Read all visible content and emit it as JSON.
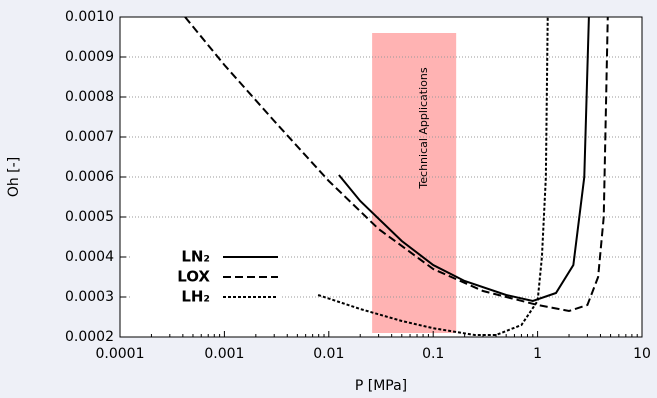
{
  "chart_data": {
    "type": "line",
    "x_label": "P [MPa]",
    "y_label": "Oh [-]",
    "log_x": true,
    "grid": true,
    "legend": "lower left",
    "xlim": [
      0.0001,
      10
    ],
    "xticks": [
      0.0001,
      0.001,
      0.01,
      0.1,
      1,
      10
    ],
    "ylim": [
      0.0002,
      0.001
    ],
    "yticks": [
      0.0002,
      0.0003,
      0.0004,
      0.0005,
      0.0006,
      0.0007,
      0.0008,
      0.0009,
      {
        "value": 0.001,
        "label": "0.0010"
      }
    ],
    "shaded_region": {
      "label": "Technical Applications",
      "color": "#ffb3b3",
      "x": [
        0.026,
        0.166
      ],
      "y": [
        0.00021,
        0.00096
      ]
    },
    "series": [
      {
        "name": "LN₂",
        "color": "#000000",
        "dash": "none",
        "x": [
          0.0125,
          0.02,
          0.05,
          0.1,
          0.2,
          0.5,
          0.9,
          1.5,
          2.2,
          2.8,
          3.1
        ],
        "values": [
          0.000605,
          0.00054,
          0.00044,
          0.00038,
          0.00034,
          0.000305,
          0.00029,
          0.00031,
          0.00038,
          0.0006,
          0.001
        ]
      },
      {
        "name": "LOX",
        "color": "#000000",
        "dash": "8 4",
        "x": [
          0.00042,
          0.001,
          0.003,
          0.01,
          0.03,
          0.1,
          0.3,
          1,
          2,
          3,
          3.8,
          4.3,
          4.7
        ],
        "values": [
          0.001,
          0.00088,
          0.00074,
          0.00059,
          0.00047,
          0.00037,
          0.000315,
          0.00028,
          0.000265,
          0.00028,
          0.00035,
          0.0005,
          0.001
        ]
      },
      {
        "name": "LH₂",
        "color": "#000000",
        "dash": "3 2",
        "x": [
          0.0079,
          0.02,
          0.05,
          0.1,
          0.25,
          0.4,
          0.7,
          1,
          1.1,
          1.2,
          1.25
        ],
        "values": [
          0.000305,
          0.00027,
          0.00024,
          0.000222,
          0.000205,
          0.000205,
          0.00023,
          0.00029,
          0.0004,
          0.0006,
          0.001
        ]
      }
    ]
  }
}
